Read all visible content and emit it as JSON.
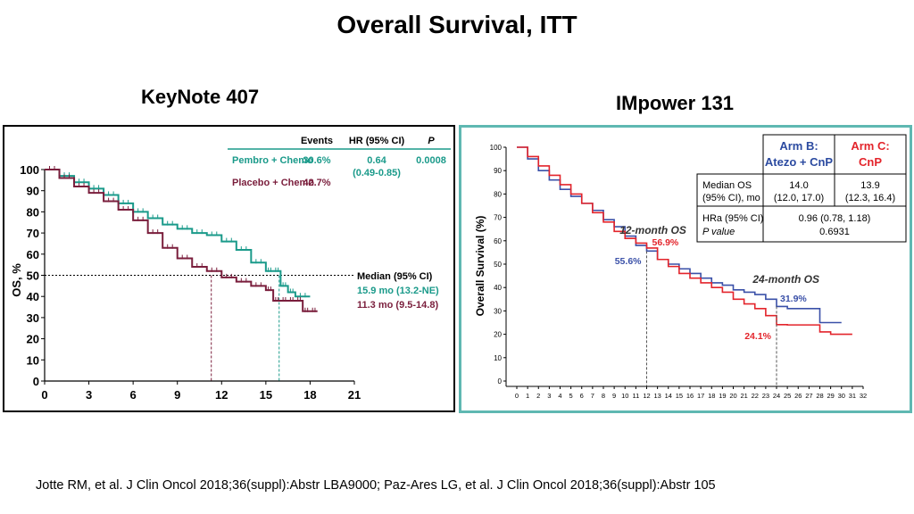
{
  "slide": {
    "title": "Overall Survival, ITT",
    "left_title": "KeyNote 407",
    "right_title": "IMpower 131",
    "footnote": "Jotte RM, et al. J Clin Oncol 2018;36(suppl):Abstr LBA9000; Paz-Ares LG, et al. J Clin Oncol 2018;36(suppl):Abstr 105"
  },
  "chart_data": [
    {
      "type": "line",
      "title": "KeyNote 407",
      "ylabel": "OS, %",
      "xlabel": "",
      "xlim": [
        0,
        21
      ],
      "ylim": [
        0,
        100
      ],
      "xticks": [
        "0",
        "3",
        "6",
        "9",
        "12",
        "15",
        "18",
        "21"
      ],
      "yticks": [
        "0",
        "10",
        "20",
        "30",
        "40",
        "50",
        "60",
        "70",
        "80",
        "90",
        "100"
      ],
      "table_headers": [
        "Events",
        "HR (95% CI)",
        "P"
      ],
      "table_rows": [
        {
          "label": "Pembro + Chemo",
          "events": "30.6%",
          "hr": "0.64",
          "ci": "(0.49-0.85)",
          "p": "0.0008",
          "color": "#1a9a8a"
        },
        {
          "label": "Placebo + Chemo",
          "events": "42.7%",
          "color": "#7a1e3c"
        }
      ],
      "median_header": "Median (95% CI)",
      "median_rows": [
        {
          "text": "15.9 mo (13.2-NE)",
          "color": "#1a9a8a",
          "x": 15.9
        },
        {
          "text": "11.3 mo (9.5-14.8)",
          "color": "#7a1e3c",
          "x": 11.3
        }
      ],
      "median_line_y": 50,
      "series": [
        {
          "name": "Pembro + Chemo",
          "color": "#1a9a8a",
          "x": [
            0,
            1,
            2,
            3,
            4,
            5,
            6,
            7,
            8,
            9,
            10,
            11,
            12,
            13,
            14,
            15,
            15.5,
            16,
            16.5,
            17,
            18
          ],
          "y": [
            100,
            97,
            94,
            91,
            88,
            84,
            80,
            77,
            74,
            72,
            70,
            69,
            66,
            62,
            56,
            52,
            52,
            45,
            42,
            40,
            40
          ]
        },
        {
          "name": "Placebo + Chemo",
          "color": "#7a1e3c",
          "x": [
            0,
            1,
            2,
            3,
            4,
            5,
            6,
            7,
            8,
            9,
            10,
            11,
            12,
            13,
            14,
            15,
            15.5,
            16,
            16.5,
            17,
            17.5,
            18,
            18.5
          ],
          "y": [
            100,
            96,
            92,
            89,
            85,
            81,
            76,
            70,
            63,
            58,
            54,
            52,
            49,
            47,
            45,
            43,
            38,
            38,
            38,
            38,
            33,
            33,
            33
          ]
        }
      ]
    },
    {
      "type": "line",
      "title": "IMpower 131",
      "ylabel": "Overall Survival (%)",
      "xlabel": "",
      "xlim": [
        0,
        32
      ],
      "ylim": [
        0,
        100
      ],
      "xticks": [
        "0",
        "1",
        "2",
        "3",
        "4",
        "5",
        "6",
        "7",
        "8",
        "9",
        "10",
        "11",
        "12",
        "13",
        "14",
        "15",
        "16",
        "17",
        "18",
        "19",
        "20",
        "21",
        "22",
        "23",
        "24",
        "25",
        "26",
        "27",
        "28",
        "29",
        "30",
        "31",
        "32"
      ],
      "yticks": [
        "0",
        "10",
        "20",
        "30",
        "40",
        "50",
        "60",
        "70",
        "80",
        "90",
        "100"
      ],
      "annotations": [
        {
          "text": "12-month OS",
          "x": 9.5,
          "y": 63
        },
        {
          "text": "24-month OS",
          "x": 21.8,
          "y": 42
        }
      ],
      "landmarks": [
        {
          "x": 12,
          "arm_c": "56.9%",
          "arm_b": "55.6%"
        },
        {
          "x": 24,
          "arm_c": "24.1%",
          "arm_b": "31.9%"
        }
      ],
      "table": {
        "arm_b_header": [
          "Arm B:",
          "Atezo + CnP"
        ],
        "arm_c_header": [
          "Arm C:",
          "CnP"
        ],
        "row1_label": [
          "Median OS",
          "(95% CI), mo"
        ],
        "row1_b": [
          "14.0",
          "(12.0, 17.0)"
        ],
        "row1_c": [
          "13.9",
          "(12.3, 16.4)"
        ],
        "row2_label": [
          "HRa (95% CI)",
          "P value"
        ],
        "row2_value": [
          "0.96 (0.78, 1.18)",
          "0.6931"
        ]
      },
      "series": [
        {
          "name": "Arm B: Atezo + CnP",
          "color": "#3a50a8",
          "x": [
            0,
            1,
            2,
            3,
            4,
            5,
            6,
            7,
            8,
            9,
            10,
            11,
            12,
            13,
            14,
            15,
            16,
            17,
            18,
            19,
            20,
            21,
            22,
            23,
            24,
            25,
            26,
            27,
            28,
            29,
            30
          ],
          "y": [
            100,
            95,
            90,
            86,
            82,
            79,
            76,
            73,
            69,
            66,
            62,
            58,
            55.6,
            52,
            50,
            48,
            46,
            44,
            42,
            41,
            39,
            38,
            37,
            35,
            31.9,
            31,
            31,
            31,
            25,
            25,
            25
          ]
        },
        {
          "name": "Arm C: CnP",
          "color": "#e3242b",
          "x": [
            0,
            1,
            2,
            3,
            4,
            5,
            6,
            7,
            8,
            9,
            10,
            11,
            12,
            13,
            14,
            15,
            16,
            17,
            18,
            19,
            20,
            21,
            22,
            23,
            24,
            25,
            26,
            27,
            28,
            29,
            30,
            31
          ],
          "y": [
            100,
            96,
            92,
            88,
            84,
            80,
            76,
            72,
            68,
            64,
            61,
            59,
            56.9,
            52,
            49,
            46,
            44,
            42,
            40,
            38,
            35,
            33,
            31,
            28,
            24.1,
            24,
            24,
            24,
            21,
            20,
            20,
            20
          ]
        }
      ]
    }
  ]
}
